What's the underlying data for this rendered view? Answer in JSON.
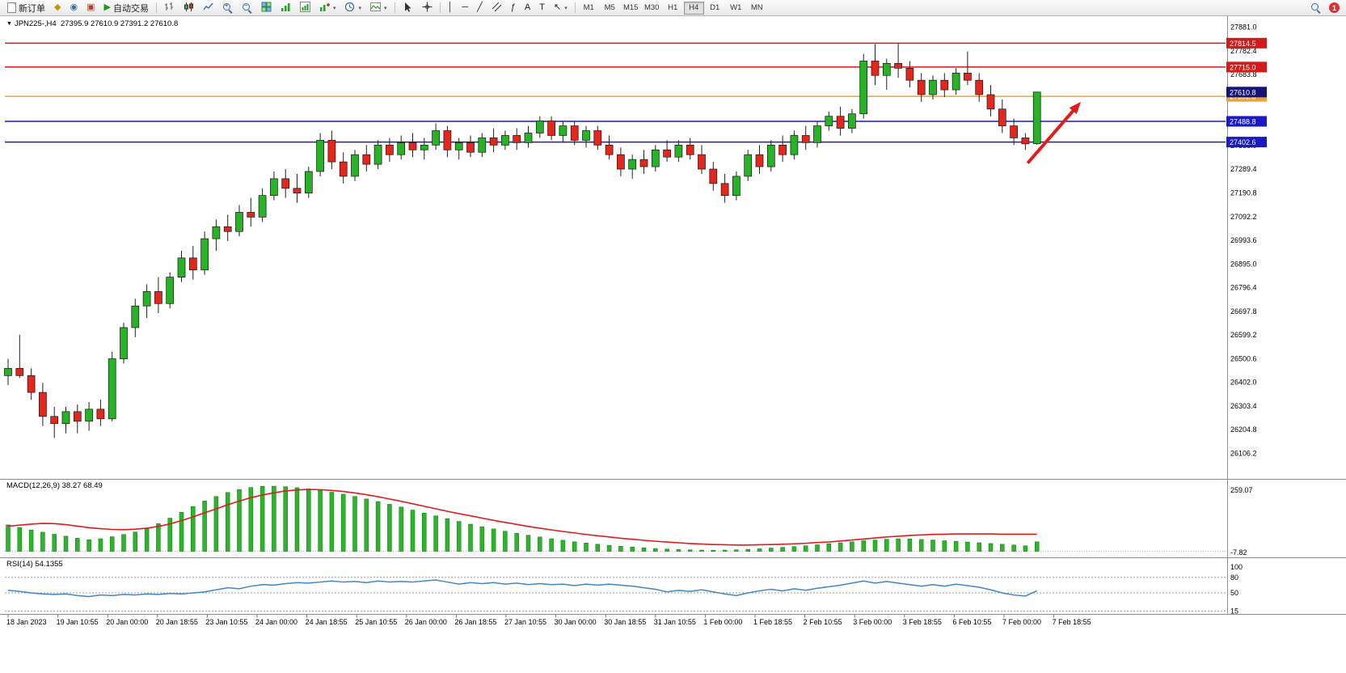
{
  "icons": {
    "collapse": "▼",
    "chevron_down": "▾",
    "diamond": "◆",
    "circle_dot": "◉",
    "book": "▣",
    "play": "▶",
    "grid": "▦",
    "vline": "│",
    "hline": "─",
    "trendline": "╱",
    "fibonacci": "ƒ",
    "text": "A",
    "text_label": "T",
    "arrow_tool": "↖",
    "plus": "+",
    "minus": "−"
  },
  "toolbar": {
    "new_order_label": "新订单",
    "auto_trading_label": "自动交易",
    "timeframes": {
      "items": [
        "M1",
        "M5",
        "M15",
        "M30",
        "H1",
        "H4",
        "D1",
        "W1",
        "MN"
      ],
      "active": "H4"
    },
    "notification_badge": "1"
  },
  "chart": {
    "title": "JPN225-,H4",
    "ohlc_text": "27395.9 27610.9 27391.2 27610.8"
  },
  "indicators": {
    "macd_label": "MACD(12,26,9) 38.27 68.49",
    "rsi_label": "RSI(14) 54.1355"
  },
  "chart_data": [
    {
      "type": "candlestick",
      "symbol": "JPN225-",
      "timeframe": "H4",
      "title": "JPN225-,H4 27395.9 27610.9 27391.2 27610.8",
      "last_bar": {
        "open": 27395.9,
        "high": 27610.9,
        "low": 27391.2,
        "close": 27610.8
      },
      "price_axis": {
        "start": 27881.0,
        "step": 98.6,
        "count": 19,
        "view_max": 27920,
        "view_min": 26000
      },
      "hlines": [
        {
          "price": 27814.5,
          "label": "27814.5",
          "color": "#d21a1a"
        },
        {
          "price": 27715.0,
          "label": "27715.0",
          "color": "#d21a1a"
        },
        {
          "price": 27592.8,
          "label": "27592.8",
          "color": "#e8a33d"
        },
        {
          "price": 27488.8,
          "label": "27488.8",
          "color": "#1919c8"
        },
        {
          "price": 27402.6,
          "label": "27402.6",
          "color": "#1919c8"
        }
      ],
      "current_price_badge": {
        "price": 27610.8,
        "label": "27610.8",
        "color": "#14147a"
      },
      "trend_arrow": {
        "from": {
          "candle": 88.2,
          "price": 27315
        },
        "to": {
          "candle": 92.8,
          "price": 27570
        },
        "color": "#e21b1b"
      },
      "time_labels": [
        "18 Jan 2023",
        "19 Jan 10:55",
        "20 Jan 00:00",
        "20 Jan 18:55",
        "23 Jan 10:55",
        "24 Jan 00:00",
        "24 Jan 18:55",
        "25 Jan 10:55",
        "26 Jan 00:00",
        "26 Jan 18:55",
        "27 Jan 10:55",
        "30 Jan 00:00",
        "30 Jan 18:55",
        "31 Jan 10:55",
        "1 Feb 00:00",
        "1 Feb 18:55",
        "2 Feb 10:55",
        "3 Feb 00:00",
        "3 Feb 18:55",
        "6 Feb 10:55",
        "7 Feb 00:00",
        "7 Feb 18:55"
      ],
      "ohlc": [
        [
          26430,
          26500,
          26390,
          26460
        ],
        [
          26460,
          26600,
          26420,
          26430
        ],
        [
          26430,
          26460,
          26330,
          26360
        ],
        [
          26360,
          26400,
          26220,
          26260
        ],
        [
          26260,
          26300,
          26170,
          26230
        ],
        [
          26230,
          26300,
          26190,
          26280
        ],
        [
          26280,
          26310,
          26190,
          26240
        ],
        [
          26240,
          26320,
          26200,
          26290
        ],
        [
          26290,
          26330,
          26220,
          26250
        ],
        [
          26250,
          26530,
          26240,
          26500
        ],
        [
          26500,
          26650,
          26480,
          26630
        ],
        [
          26630,
          26750,
          26590,
          26720
        ],
        [
          26720,
          26810,
          26670,
          26780
        ],
        [
          26780,
          26840,
          26690,
          26730
        ],
        [
          26730,
          26860,
          26710,
          26840
        ],
        [
          26840,
          26950,
          26820,
          26920
        ],
        [
          26920,
          26970,
          26830,
          26870
        ],
        [
          26870,
          27030,
          26850,
          27000
        ],
        [
          27000,
          27080,
          26950,
          27050
        ],
        [
          27050,
          27100,
          26990,
          27030
        ],
        [
          27030,
          27140,
          27010,
          27110
        ],
        [
          27110,
          27170,
          27050,
          27090
        ],
        [
          27090,
          27210,
          27070,
          27180
        ],
        [
          27180,
          27280,
          27160,
          27250
        ],
        [
          27250,
          27290,
          27170,
          27210
        ],
        [
          27210,
          27270,
          27150,
          27190
        ],
        [
          27190,
          27300,
          27170,
          27280
        ],
        [
          27280,
          27440,
          27260,
          27410
        ],
        [
          27410,
          27450,
          27290,
          27320
        ],
        [
          27320,
          27360,
          27230,
          27260
        ],
        [
          27260,
          27370,
          27240,
          27350
        ],
        [
          27350,
          27390,
          27280,
          27310
        ],
        [
          27310,
          27410,
          27290,
          27390
        ],
        [
          27390,
          27420,
          27320,
          27350
        ],
        [
          27350,
          27430,
          27330,
          27400
        ],
        [
          27400,
          27440,
          27340,
          27370
        ],
        [
          27370,
          27420,
          27330,
          27390
        ],
        [
          27390,
          27480,
          27370,
          27450
        ],
        [
          27450,
          27470,
          27340,
          27370
        ],
        [
          27370,
          27420,
          27330,
          27400
        ],
        [
          27400,
          27430,
          27340,
          27360
        ],
        [
          27360,
          27440,
          27340,
          27420
        ],
        [
          27420,
          27460,
          27360,
          27390
        ],
        [
          27390,
          27450,
          27370,
          27430
        ],
        [
          27430,
          27460,
          27370,
          27400
        ],
        [
          27400,
          27470,
          27380,
          27440
        ],
        [
          27440,
          27510,
          27420,
          27490
        ],
        [
          27490,
          27510,
          27410,
          27430
        ],
        [
          27430,
          27490,
          27400,
          27470
        ],
        [
          27470,
          27490,
          27390,
          27410
        ],
        [
          27410,
          27470,
          27380,
          27450
        ],
        [
          27450,
          27470,
          27370,
          27390
        ],
        [
          27390,
          27430,
          27330,
          27350
        ],
        [
          27350,
          27380,
          27260,
          27290
        ],
        [
          27290,
          27350,
          27250,
          27330
        ],
        [
          27330,
          27370,
          27270,
          27300
        ],
        [
          27300,
          27390,
          27280,
          27370
        ],
        [
          27370,
          27410,
          27320,
          27340
        ],
        [
          27340,
          27410,
          27320,
          27390
        ],
        [
          27390,
          27420,
          27330,
          27350
        ],
        [
          27350,
          27390,
          27270,
          27290
        ],
        [
          27290,
          27320,
          27200,
          27230
        ],
        [
          27230,
          27270,
          27150,
          27180
        ],
        [
          27180,
          27280,
          27160,
          27260
        ],
        [
          27260,
          27370,
          27240,
          27350
        ],
        [
          27350,
          27390,
          27270,
          27300
        ],
        [
          27300,
          27410,
          27280,
          27390
        ],
        [
          27390,
          27430,
          27320,
          27350
        ],
        [
          27350,
          27450,
          27330,
          27430
        ],
        [
          27430,
          27470,
          27370,
          27400
        ],
        [
          27400,
          27490,
          27380,
          27470
        ],
        [
          27470,
          27530,
          27450,
          27510
        ],
        [
          27510,
          27550,
          27430,
          27460
        ],
        [
          27460,
          27540,
          27440,
          27520
        ],
        [
          27520,
          27770,
          27500,
          27740
        ],
        [
          27740,
          27810,
          27640,
          27680
        ],
        [
          27680,
          27750,
          27620,
          27730
        ],
        [
          27730,
          27814,
          27670,
          27710
        ],
        [
          27710,
          27740,
          27630,
          27660
        ],
        [
          27660,
          27690,
          27570,
          27600
        ],
        [
          27600,
          27680,
          27580,
          27660
        ],
        [
          27660,
          27690,
          27590,
          27620
        ],
        [
          27620,
          27710,
          27600,
          27690
        ],
        [
          27690,
          27780,
          27640,
          27660
        ],
        [
          27660,
          27690,
          27570,
          27600
        ],
        [
          27600,
          27640,
          27510,
          27540
        ],
        [
          27540,
          27580,
          27440,
          27470
        ],
        [
          27470,
          27500,
          27390,
          27420
        ],
        [
          27420,
          27440,
          27370,
          27395
        ],
        [
          27395.9,
          27610.9,
          27391.2,
          27610.8
        ]
      ]
    },
    {
      "type": "bar",
      "name": "MACD",
      "params": "12,26,9",
      "label": "MACD(12,26,9) 38.27 68.49",
      "macd_value": 38.27,
      "signal_value": 68.49,
      "axis_labels": [
        {
          "text": "259.07",
          "value": 259.07
        },
        {
          "text": "-7.82",
          "value": -7.82
        }
      ],
      "histogram": [
        105,
        95,
        85,
        76,
        68,
        60,
        52,
        46,
        50,
        58,
        67,
        77,
        90,
        110,
        132,
        155,
        178,
        200,
        218,
        234,
        246,
        254,
        258,
        259,
        257,
        253,
        248,
        242,
        235,
        227,
        218,
        208,
        198,
        187,
        176,
        164,
        152,
        141,
        130,
        119,
        108,
        98,
        89,
        80,
        72,
        64,
        57,
        50,
        44,
        38,
        33,
        28,
        24,
        20,
        17,
        14,
        11,
        9,
        7,
        6,
        5,
        4,
        5,
        6,
        8,
        10,
        13,
        16,
        19,
        22,
        26,
        30,
        34,
        38,
        42,
        45,
        48,
        50,
        49,
        47,
        45,
        42,
        40,
        37,
        34,
        31,
        28,
        25,
        22,
        38
      ],
      "signal": [
        100,
        104,
        108,
        111,
        110,
        106,
        100,
        94,
        90,
        87,
        86,
        88,
        92,
        99,
        109,
        122,
        137,
        153,
        169,
        185,
        200,
        213,
        224,
        233,
        240,
        244,
        246,
        245,
        242,
        238,
        232,
        225,
        217,
        208,
        199,
        189,
        179,
        169,
        159,
        150,
        141,
        132,
        123,
        115,
        107,
        99,
        92,
        85,
        79,
        73,
        67,
        62,
        57,
        52,
        48,
        44,
        40,
        37,
        34,
        31,
        29,
        27,
        26,
        25,
        25,
        26,
        27,
        28,
        30,
        32,
        35,
        37,
        41,
        45,
        49,
        53,
        57,
        60,
        63,
        65,
        67,
        68,
        69,
        69,
        69,
        69,
        68,
        68,
        68,
        68
      ]
    },
    {
      "type": "line",
      "name": "RSI",
      "period": 14,
      "label": "RSI(14) 54.1355",
      "value": 54.1355,
      "levels": [
        80,
        50,
        15
      ],
      "axis_labels": [
        {
          "text": "100",
          "value": 100
        },
        {
          "text": "80",
          "value": 80
        },
        {
          "text": "50",
          "value": 50
        },
        {
          "text": "15",
          "value": 15
        }
      ],
      "values": [
        55,
        53,
        50,
        48,
        47,
        48,
        45,
        43,
        46,
        45,
        47,
        46,
        48,
        47,
        49,
        48,
        50,
        52,
        56,
        60,
        58,
        63,
        66,
        65,
        68,
        70,
        69,
        71,
        73,
        71,
        72,
        70,
        73,
        71,
        72,
        71,
        73,
        75,
        71,
        67,
        70,
        68,
        70,
        67,
        69,
        66,
        68,
        66,
        67,
        64,
        67,
        65,
        67,
        65,
        63,
        60,
        57,
        52,
        55,
        53,
        56,
        52,
        48,
        45,
        50,
        54,
        57,
        54,
        58,
        55,
        59,
        62,
        65,
        69,
        73,
        69,
        72,
        69,
        66,
        63,
        66,
        63,
        67,
        64,
        61,
        56,
        50,
        46,
        44,
        54
      ]
    }
  ]
}
